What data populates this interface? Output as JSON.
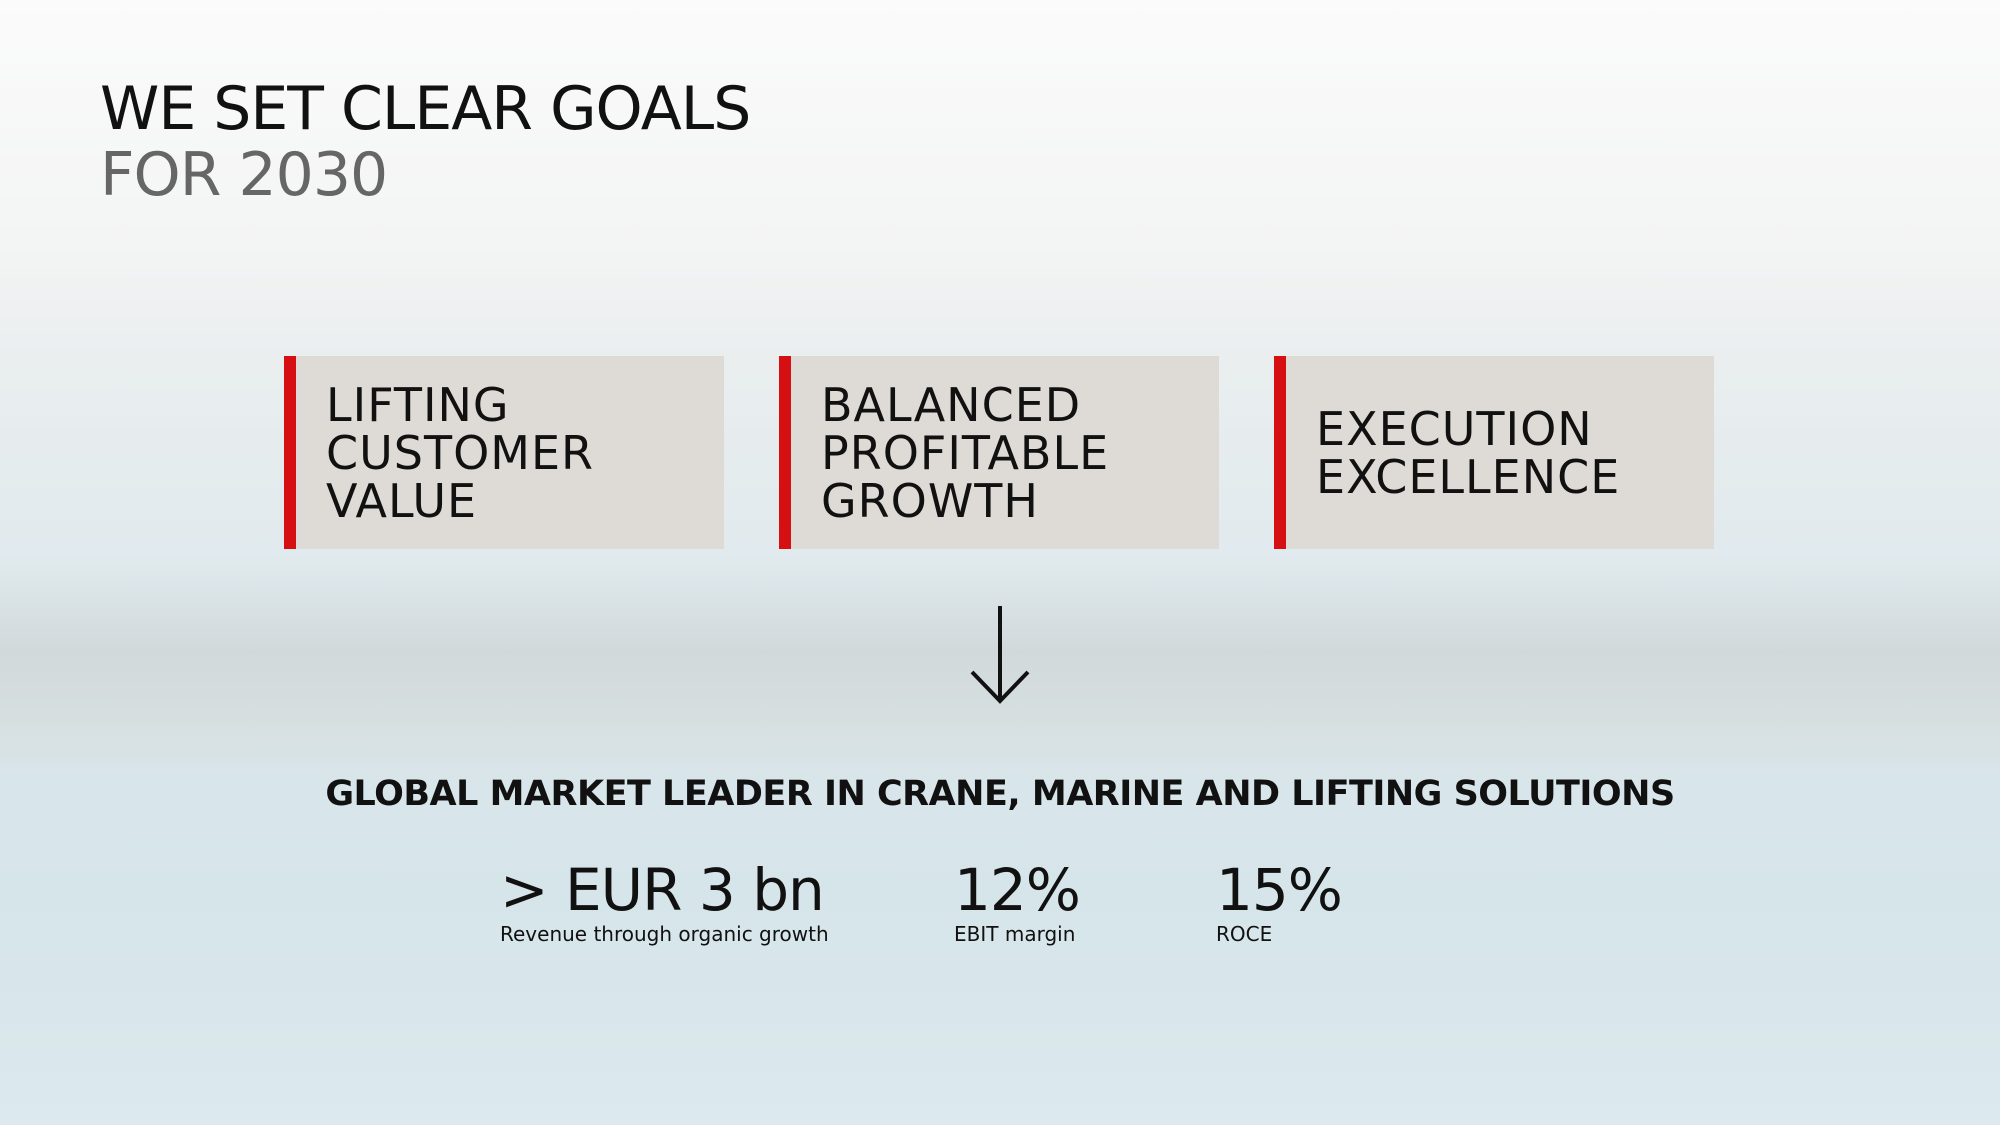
{
  "header": {
    "title": "WE SET CLEAR GOALS",
    "subtitle": "FOR 2030"
  },
  "pillars": [
    {
      "lines": [
        "LIFTING",
        "CUSTOMER",
        "VALUE"
      ]
    },
    {
      "lines": [
        "BALANCED",
        "PROFITABLE",
        "GROWTH"
      ]
    },
    {
      "lines": [
        "EXECUTION",
        "EXCELLENCE"
      ]
    }
  ],
  "tagline": "GLOBAL MARKET LEADER IN CRANE, MARINE AND LIFTING SOLUTIONS",
  "metrics": [
    {
      "value": "> EUR 3 bn",
      "label": "Revenue through organic growth"
    },
    {
      "value": "12%",
      "label": "EBIT margin"
    },
    {
      "value": "15%",
      "label": "ROCE"
    }
  ]
}
